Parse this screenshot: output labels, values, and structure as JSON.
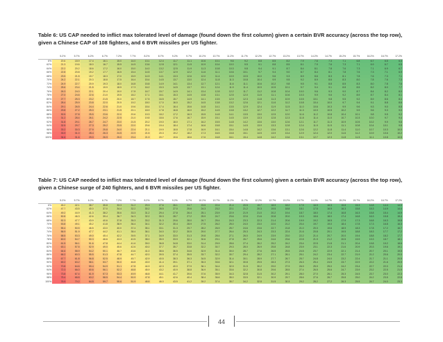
{
  "captions": {
    "table6": "Table 6: US CAP needed to inflict max tolerated level of damage (found down the first column) given a certain BVR accuracy (across the top row), given a Chinese CAP of 108 fighters, and 6 BVR missiles per US fighter.",
    "table7": "Table 7: US CAP needed to inflict max tolerated level of damage (found down the first column) given a certain BVR accuracy (across the top row), given a Chinese surge of 240 fighters, and 6 BVR missiles per US fighter."
  },
  "columns": [
    "5.2%",
    "5.7%",
    "6.2%",
    "6.7%",
    "7.2%",
    "7.7%",
    "8.2%",
    "8.7%",
    "9.2%",
    "9.7%",
    "10.2%",
    "10.7%",
    "11.2%",
    "11.7%",
    "12.2%",
    "12.7%",
    "13.2%",
    "13.7%",
    "14.2%",
    "14.7%",
    "15.2%",
    "15.7%",
    "16.2%",
    "16.7%",
    "17.2%"
  ],
  "rows": [
    "6%",
    "62%",
    "64%",
    "66%",
    "68%",
    "70%",
    "72%",
    "74%",
    "76%",
    "78%",
    "80%",
    "82%",
    "84%",
    "86%",
    "88%",
    "90%",
    "92%",
    "94%",
    "96%",
    "98%",
    "100%"
  ],
  "table6": [
    [
      "20.6",
      "18.9",
      "17.4",
      "16.1",
      "15.0",
      "14.0",
      "13.1",
      "12.4",
      "11.7",
      "11.1",
      "10.6",
      "10.1",
      "9.6",
      "9.2",
      "8.8",
      "8.5",
      "8.2",
      "7.9",
      "7.6",
      "7.3",
      "7.1",
      "6.8",
      "6.7",
      "6.5",
      "6.3"
    ],
    [
      "21.3",
      "19.6",
      "18.0",
      "16.7",
      "15.5",
      "14.5",
      "13.6",
      "12.8",
      "12.1",
      "11.5",
      "10.9",
      "10.4",
      "10.0",
      "9.5",
      "9.1",
      "8.8",
      "8.5",
      "8.1",
      "7.9",
      "7.6",
      "7.3",
      "7.1",
      "6.9",
      "6.7",
      "6.5"
    ],
    [
      "22.2",
      "20.2",
      "18.6",
      "17.2",
      "16.0",
      "15.0",
      "14.0",
      "13.2",
      "12.5",
      "11.9",
      "11.3",
      "10.8",
      "10.3",
      "9.8",
      "9.4",
      "9.1",
      "8.7",
      "8.4",
      "8.1",
      "7.8",
      "7.6",
      "7.3",
      "7.1",
      "6.9",
      "6.7"
    ],
    [
      "22.8",
      "20.8",
      "19.2",
      "17.7",
      "16.5",
      "15.4",
      "14.5",
      "13.7",
      "12.9",
      "12.2",
      "11.6",
      "11.1",
      "10.6",
      "10.1",
      "9.7",
      "9.4",
      "9.0",
      "8.7",
      "8.4",
      "8.1",
      "7.8",
      "7.6",
      "7.3",
      "7.1",
      "6.9"
    ],
    [
      "23.5",
      "21.5",
      "19.7",
      "18.3",
      "17.0",
      "15.9",
      "14.9",
      "14.1",
      "13.3",
      "12.6",
      "12.0",
      "11.4",
      "10.9",
      "10.5",
      "10.0",
      "9.6",
      "9.3",
      "8.9",
      "8.6",
      "8.3",
      "8.1",
      "7.8",
      "7.6",
      "7.3",
      "7.1"
    ],
    [
      "24.2",
      "22.1",
      "20.3",
      "18.8",
      "17.5",
      "16.4",
      "15.4",
      "14.5",
      "13.7",
      "13.0",
      "12.4",
      "11.8",
      "11.3",
      "10.8",
      "10.4",
      "9.9",
      "9.5",
      "9.2",
      "8.9",
      "8.6",
      "8.3",
      "8.0",
      "7.8",
      "7.6",
      "7.3"
    ],
    [
      "24.9",
      "22.7",
      "20.9",
      "19.3",
      "18.0",
      "16.8",
      "15.8",
      "14.9",
      "14.1",
      "13.4",
      "12.7",
      "12.1",
      "11.6",
      "11.1",
      "10.6",
      "10.2",
      "9.8",
      "9.5",
      "9.1",
      "8.8",
      "8.5",
      "8.3",
      "8.0",
      "7.8",
      "7.6"
    ],
    [
      "25.6",
      "23.4",
      "21.5",
      "19.9",
      "18.5",
      "17.3",
      "16.2",
      "15.3",
      "14.5",
      "13.7",
      "13.1",
      "12.4",
      "11.9",
      "11.4",
      "10.9",
      "10.5",
      "10.1",
      "9.7",
      "9.4",
      "9.1",
      "8.8",
      "8.5",
      "8.2",
      "8.0",
      "7.7"
    ],
    [
      "26.3",
      "24.0",
      "22.1",
      "20.4",
      "19.0",
      "17.8",
      "16.7",
      "15.7",
      "14.9",
      "14.1",
      "13.4",
      "12.8",
      "12.2",
      "11.7",
      "11.2",
      "10.8",
      "10.4",
      "10.0",
      "9.6",
      "9.3",
      "9.0",
      "8.7",
      "8.4",
      "8.2",
      "8.0"
    ],
    [
      "27.0",
      "24.6",
      "22.6",
      "21.0",
      "19.5",
      "18.2",
      "17.1",
      "16.1",
      "15.3",
      "14.5",
      "13.8",
      "13.1",
      "12.5",
      "12.0",
      "11.5",
      "11.1",
      "10.6",
      "10.3",
      "9.9",
      "9.6",
      "9.2",
      "8.9",
      "8.7",
      "8.4",
      "8.1"
    ],
    [
      "27.7",
      "25.3",
      "23.2",
      "21.5",
      "20.0",
      "18.7",
      "17.5",
      "16.5",
      "15.7",
      "14.9",
      "14.1",
      "13.5",
      "12.9",
      "12.3",
      "11.8",
      "11.3",
      "10.9",
      "10.5",
      "10.1",
      "9.8",
      "9.5",
      "9.2",
      "8.9",
      "8.6",
      "8.4"
    ],
    [
      "28.4",
      "25.9",
      "23.8",
      "22.0",
      "20.5",
      "19.2",
      "18.0",
      "17.0",
      "16.0",
      "15.2",
      "14.5",
      "13.8",
      "13.2",
      "12.6",
      "12.1",
      "11.6",
      "11.2",
      "10.8",
      "10.4",
      "10.0",
      "9.7",
      "9.4",
      "9.1",
      "8.8",
      "8.6"
    ],
    [
      "29.1",
      "26.5",
      "24.4",
      "22.6",
      "21.0",
      "19.6",
      "18.4",
      "17.4",
      "16.4",
      "15.6",
      "14.8",
      "14.1",
      "13.5",
      "12.9",
      "12.4",
      "11.9",
      "11.5",
      "11.0",
      "10.6",
      "10.3",
      "9.9",
      "9.6",
      "9.3",
      "9.0",
      "8.8"
    ],
    [
      "29.8",
      "27.2",
      "25.0",
      "23.1",
      "21.5",
      "20.1",
      "18.9",
      "17.8",
      "16.8",
      "16.0",
      "15.2",
      "14.5",
      "13.8",
      "13.2",
      "12.7",
      "12.2",
      "11.7",
      "11.3",
      "10.9",
      "10.5",
      "10.2",
      "9.9",
      "9.6",
      "9.3",
      "9.0"
    ],
    [
      "30.5",
      "27.8",
      "25.5",
      "23.6",
      "22.0",
      "20.6",
      "19.3",
      "18.2",
      "17.2",
      "16.3",
      "15.5",
      "14.8",
      "14.1",
      "13.5",
      "13.0",
      "12.5",
      "12.0",
      "11.6",
      "11.2",
      "10.8",
      "10.4",
      "10.1",
      "9.8",
      "9.5",
      "9.2"
    ],
    [
      "31.2",
      "28.4",
      "26.1",
      "24.2",
      "22.5",
      "21.0",
      "19.8",
      "18.6",
      "17.6",
      "16.7",
      "15.9",
      "15.1",
      "14.5",
      "13.9",
      "13.3",
      "12.8",
      "12.3",
      "11.8",
      "11.4",
      "11.0",
      "10.7",
      "10.3",
      "10.0",
      "9.7",
      "9.4"
    ],
    [
      "31.8",
      "29.1",
      "26.7",
      "24.7",
      "23.0",
      "21.5",
      "20.2",
      "19.0",
      "18.0",
      "17.1",
      "16.2",
      "15.5",
      "14.8",
      "14.2",
      "13.6",
      "13.0",
      "12.6",
      "12.1",
      "11.7",
      "11.3",
      "10.9",
      "10.5",
      "10.2",
      "9.9",
      "9.6"
    ],
    [
      "32.5",
      "29.7",
      "27.3",
      "25.2",
      "23.5",
      "22.0",
      "20.6",
      "19.4",
      "18.4",
      "17.4",
      "16.6",
      "15.8",
      "15.1",
      "14.5",
      "13.9",
      "13.3",
      "12.8",
      "12.4",
      "11.9",
      "11.5",
      "11.1",
      "10.8",
      "10.4",
      "10.1",
      "9.8"
    ],
    [
      "33.2",
      "30.3",
      "27.9",
      "25.8",
      "24.0",
      "22.4",
      "21.1",
      "19.9",
      "18.8",
      "17.8",
      "16.9",
      "16.1",
      "15.4",
      "14.8",
      "14.2",
      "13.6",
      "13.1",
      "12.6",
      "12.2",
      "11.8",
      "11.4",
      "11.0",
      "10.7",
      "10.3",
      "10.0"
    ],
    [
      "33.9",
      "31.0",
      "28.4",
      "26.3",
      "24.5",
      "22.9",
      "21.5",
      "20.3",
      "19.2",
      "18.2",
      "17.3",
      "16.5",
      "15.8",
      "15.1",
      "14.5",
      "13.9",
      "13.4",
      "12.9",
      "12.4",
      "12.0",
      "11.6",
      "11.2",
      "10.9",
      "10.6",
      "10.2"
    ],
    [
      "34.6",
      "31.6",
      "29.0",
      "26.9",
      "25.0",
      "23.4",
      "21.9",
      "20.7",
      "19.6",
      "18.6",
      "17.6",
      "16.8",
      "16.1",
      "15.4",
      "14.8",
      "14.2",
      "13.6",
      "13.1",
      "12.7",
      "12.3",
      "11.8",
      "11.5",
      "11.1",
      "10.8",
      "10.5"
    ]
  ],
  "table7": [
    [
      "45.2",
      "42.1",
      "38.7",
      "35.8",
      "33.3",
      "31.2",
      "29.3",
      "27.6",
      "26.1",
      "24.7",
      "23.5",
      "22.4",
      "21.4",
      "20.5",
      "19.7",
      "18.9",
      "18.2",
      "17.5",
      "16.9",
      "16.3",
      "15.8",
      "15.3",
      "14.8",
      "14.4",
      "14.0"
    ],
    [
      "47.7",
      "43.5",
      "40.0",
      "37.0",
      "34.4",
      "32.2",
      "30.2",
      "28.5",
      "27.0",
      "25.6",
      "24.3",
      "23.2",
      "22.1",
      "21.2",
      "20.3",
      "19.5",
      "18.8",
      "18.1",
      "17.5",
      "16.9",
      "16.3",
      "15.8",
      "15.3",
      "14.9",
      "14.4"
    ],
    [
      "49.2",
      "44.9",
      "41.3",
      "38.2",
      "35.6",
      "33.3",
      "31.2",
      "29.4",
      "27.8",
      "26.4",
      "25.1",
      "23.9",
      "22.9",
      "21.9",
      "21.0",
      "20.2",
      "19.4",
      "18.7",
      "18.0",
      "17.4",
      "16.8",
      "16.3",
      "15.8",
      "15.4",
      "14.9"
    ],
    [
      "50.8",
      "46.3",
      "42.6",
      "39.4",
      "36.7",
      "34.3",
      "32.2",
      "30.3",
      "28.7",
      "27.2",
      "25.9",
      "24.7",
      "23.6",
      "22.6",
      "21.6",
      "20.8",
      "20.0",
      "19.3",
      "18.6",
      "18.0",
      "17.4",
      "16.8",
      "16.3",
      "15.8",
      "15.4"
    ],
    [
      "52.3",
      "47.7",
      "43.9",
      "40.6",
      "37.8",
      "35.3",
      "33.2",
      "31.3",
      "29.6",
      "28.0",
      "26.7",
      "25.4",
      "24.3",
      "23.3",
      "22.3",
      "21.4",
      "20.6",
      "19.9",
      "19.2",
      "18.5",
      "17.9",
      "17.3",
      "16.8",
      "16.3",
      "15.8"
    ],
    [
      "53.8",
      "49.1",
      "45.2",
      "41.8",
      "38.9",
      "36.4",
      "34.1",
      "32.2",
      "30.4",
      "28.9",
      "27.5",
      "26.2",
      "25.0",
      "24.0",
      "23.0",
      "22.0",
      "21.2",
      "20.4",
      "19.7",
      "19.0",
      "18.4",
      "17.8",
      "17.3",
      "16.8",
      "16.3"
    ],
    [
      "55.4",
      "50.5",
      "46.5",
      "43.0",
      "40.0",
      "37.4",
      "35.1",
      "33.1",
      "31.3",
      "29.7",
      "28.2",
      "26.9",
      "25.7",
      "24.6",
      "23.6",
      "22.7",
      "21.8",
      "21.0",
      "20.3",
      "19.6",
      "18.9",
      "18.3",
      "17.8",
      "17.2",
      "16.7"
    ],
    [
      "56.9",
      "51.9",
      "47.7",
      "44.2",
      "41.1",
      "38.4",
      "36.1",
      "34.0",
      "32.2",
      "30.5",
      "29.0",
      "27.7",
      "26.4",
      "25.3",
      "24.3",
      "23.3",
      "22.4",
      "21.6",
      "20.8",
      "20.1",
      "19.5",
      "18.8",
      "18.3",
      "17.7",
      "17.2"
    ],
    [
      "58.5",
      "53.3",
      "49.0",
      "45.4",
      "42.2",
      "39.5",
      "37.1",
      "34.9",
      "33.0",
      "31.3",
      "29.8",
      "28.4",
      "27.1",
      "26.0",
      "24.9",
      "23.9",
      "23.0",
      "22.2",
      "21.4",
      "20.7",
      "20.0",
      "19.4",
      "18.8",
      "18.2",
      "17.7"
    ],
    [
      "60.0",
      "54.7",
      "50.3",
      "46.6",
      "43.3",
      "40.5",
      "38.0",
      "35.9",
      "33.9",
      "32.1",
      "30.6",
      "29.1",
      "27.8",
      "26.7",
      "25.6",
      "24.6",
      "23.6",
      "22.8",
      "21.9",
      "21.2",
      "20.5",
      "19.9",
      "19.3",
      "18.7",
      "18.1"
    ],
    [
      "61.5",
      "56.1",
      "51.6",
      "47.8",
      "44.4",
      "41.6",
      "39.0",
      "36.8",
      "34.8",
      "33.0",
      "31.4",
      "29.9",
      "28.6",
      "27.4",
      "26.2",
      "25.2",
      "24.2",
      "23.4",
      "22.5",
      "21.8",
      "21.1",
      "20.4",
      "19.8",
      "19.2",
      "18.6"
    ],
    [
      "63.1",
      "57.5",
      "52.9",
      "49.0",
      "45.6",
      "42.6",
      "40.0",
      "37.7",
      "35.7",
      "33.8",
      "32.2",
      "30.7",
      "29.3",
      "28.0",
      "26.9",
      "25.8",
      "24.8",
      "23.9",
      "23.1",
      "22.3",
      "21.6",
      "20.9",
      "20.3",
      "19.6",
      "19.1"
    ],
    [
      "64.6",
      "58.9",
      "54.2",
      "50.1",
      "46.7",
      "43.6",
      "41.0",
      "38.6",
      "36.5",
      "34.6",
      "32.9",
      "31.4",
      "30.0",
      "28.7",
      "27.6",
      "26.5",
      "25.5",
      "24.5",
      "23.7",
      "22.9",
      "22.1",
      "21.4",
      "20.7",
      "20.1",
      "19.5"
    ],
    [
      "66.2",
      "60.3",
      "55.5",
      "51.3",
      "47.8",
      "44.7",
      "42.0",
      "39.5",
      "37.4",
      "35.5",
      "33.7",
      "32.2",
      "30.7",
      "29.4",
      "28.2",
      "27.1",
      "26.1",
      "25.1",
      "24.2",
      "23.4",
      "22.7",
      "21.9",
      "21.2",
      "20.6",
      "20.0"
    ],
    [
      "67.7",
      "61.8",
      "56.8",
      "52.5",
      "48.9",
      "45.7",
      "42.9",
      "40.5",
      "38.3",
      "36.3",
      "34.5",
      "32.9",
      "31.4",
      "30.1",
      "28.9",
      "27.7",
      "26.7",
      "25.7",
      "24.8",
      "24.0",
      "23.2",
      "22.4",
      "21.7",
      "21.1",
      "20.5"
    ],
    [
      "69.2",
      "63.2",
      "58.1",
      "53.7",
      "50.0",
      "46.8",
      "43.9",
      "41.4",
      "39.1",
      "37.1",
      "35.3",
      "33.6",
      "32.1",
      "30.8",
      "29.5",
      "28.3",
      "27.3",
      "26.3",
      "25.4",
      "24.5",
      "23.7",
      "22.9",
      "22.2",
      "21.6",
      "20.9"
    ],
    [
      "70.8",
      "64.6",
      "59.4",
      "54.9",
      "51.1",
      "47.8",
      "44.9",
      "42.3",
      "40.0",
      "37.9",
      "36.1",
      "34.4",
      "32.9",
      "31.5",
      "30.2",
      "29.0",
      "27.9",
      "26.9",
      "25.9",
      "25.0",
      "24.2",
      "23.4",
      "22.7",
      "22.0",
      "21.4"
    ],
    [
      "72.3",
      "66.0",
      "60.6",
      "56.1",
      "52.2",
      "48.8",
      "45.9",
      "43.2",
      "40.9",
      "38.8",
      "36.9",
      "35.1",
      "33.6",
      "32.2",
      "30.8",
      "29.6",
      "28.5",
      "27.4",
      "26.5",
      "25.6",
      "24.7",
      "23.9",
      "23.2",
      "22.5",
      "21.9"
    ],
    [
      "73.8",
      "67.4",
      "61.9",
      "57.3",
      "53.3",
      "49.9",
      "46.8",
      "44.1",
      "41.7",
      "39.6",
      "37.6",
      "35.9",
      "34.3",
      "32.8",
      "31.5",
      "30.2",
      "29.1",
      "28.0",
      "27.0",
      "26.1",
      "25.3",
      "24.5",
      "23.7",
      "23.0",
      "22.3"
    ],
    [
      "75.4",
      "68.8",
      "63.2",
      "58.5",
      "54.4",
      "50.9",
      "47.8",
      "45.1",
      "42.6",
      "40.4",
      "38.4",
      "36.6",
      "35.0",
      "33.5",
      "32.1",
      "30.9",
      "29.7",
      "28.6",
      "27.6",
      "26.7",
      "25.8",
      "25.0",
      "24.2",
      "23.5",
      "22.8"
    ],
    [
      "76.9",
      "70.2",
      "64.5",
      "59.7",
      "55.6",
      "51.9",
      "48.8",
      "46.0",
      "43.5",
      "41.2",
      "39.2",
      "37.4",
      "35.7",
      "34.2",
      "32.8",
      "31.5",
      "30.3",
      "29.2",
      "28.2",
      "27.2",
      "26.3",
      "25.5",
      "24.7",
      "24.0",
      "23.3"
    ]
  ],
  "page_number": "44",
  "colors": {
    "heat_low": "#63be7b",
    "heat_mid": "#ffeb84",
    "heat_high": "#f8696b"
  }
}
